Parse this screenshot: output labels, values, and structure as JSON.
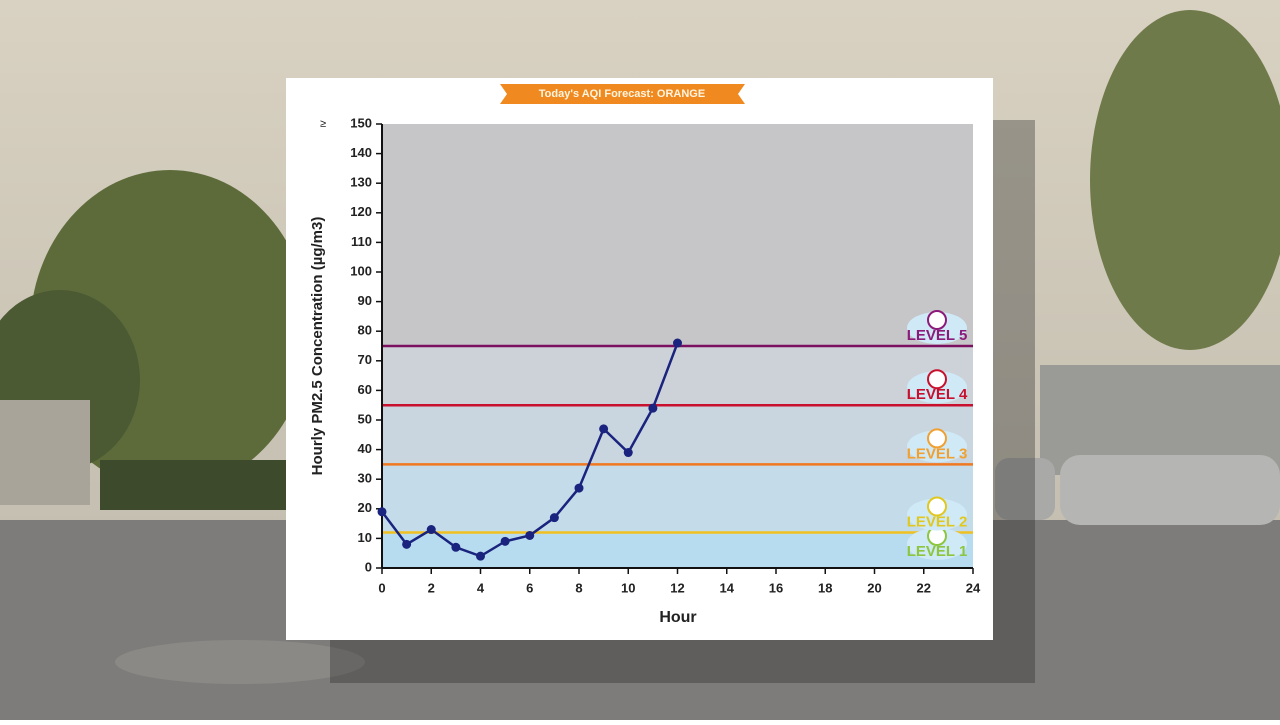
{
  "chart_data": {
    "type": "line",
    "banner": "Today's AQI Forecast: ORANGE",
    "y_label": "Hourly PM2.5 Concentration (µg/m3)",
    "x_label": "Hour",
    "y_top_prefix": "≥",
    "x": [
      0,
      1,
      2,
      3,
      4,
      5,
      6,
      7,
      8,
      9,
      10,
      11,
      12
    ],
    "values": [
      19,
      8,
      13,
      7,
      4,
      9,
      11,
      17,
      27,
      47,
      39,
      54,
      76
    ],
    "color": "#1a237e",
    "xlim": [
      0,
      24
    ],
    "xticks": [
      0,
      2,
      4,
      6,
      8,
      10,
      12,
      14,
      16,
      18,
      20,
      22,
      24
    ],
    "ylim": [
      0,
      150
    ],
    "yticks": [
      0,
      10,
      20,
      30,
      40,
      50,
      60,
      70,
      80,
      90,
      100,
      110,
      120,
      130,
      140,
      150
    ],
    "thresholds": [
      {
        "value": 12,
        "color": "#f0c020"
      },
      {
        "value": 35,
        "color": "#f07820"
      },
      {
        "value": 55,
        "color": "#c8102e"
      },
      {
        "value": 75,
        "color": "#7b1060"
      }
    ],
    "levels": [
      {
        "label": "LEVEL 1",
        "color": "#8cc63f"
      },
      {
        "label": "LEVEL 2",
        "color": "#e0c820"
      },
      {
        "label": "LEVEL 3",
        "color": "#f0a030"
      },
      {
        "label": "LEVEL 4",
        "color": "#c8102e"
      },
      {
        "label": "LEVEL 5",
        "color": "#8b1a7a"
      }
    ]
  }
}
